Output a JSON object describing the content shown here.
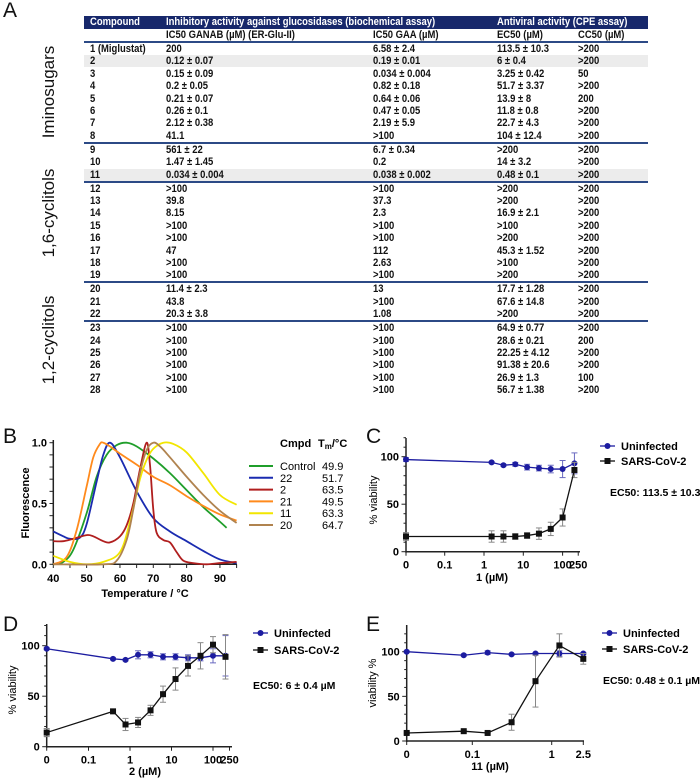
{
  "panel_letters": {
    "a": "A",
    "b": "B",
    "c": "C",
    "d": "D",
    "e": "E"
  },
  "table": {
    "header": {
      "compound": "Compound",
      "inhibitory": "Inhibitory activity against glucosidases (biochemical assay)",
      "antiviral": "Antiviral activity (CPE assay)"
    },
    "subheader": {
      "ganab": "IC50 GANAB (µM) (ER-Glu-II)",
      "gaa": "IC50 GAA (µM)",
      "ec50": "EC50 (µM)",
      "cc50": "CC50 (µM)"
    },
    "groups": [
      {
        "label": "Iminosugars",
        "from": 1,
        "to": 8
      },
      {
        "label": "1,6-cyclitols",
        "from": 9,
        "to": 19
      },
      {
        "label": "1,2-cyclitols",
        "from": 20,
        "to": 28
      }
    ],
    "separators_after": [
      8,
      11,
      19,
      22
    ],
    "shaded_rows": [
      2,
      11
    ],
    "rows": [
      {
        "compound": "1 (Miglustat)",
        "ganab": "200",
        "gaa": "6.58 ± 2.4",
        "ec50": "113.5 ± 10.3",
        "cc50": ">200"
      },
      {
        "compound": "2",
        "ganab": "0.12 ± 0.07",
        "gaa": "0.19 ± 0.01",
        "ec50": "6 ± 0.4",
        "cc50": ">200"
      },
      {
        "compound": "3",
        "ganab": "0.15 ± 0.09",
        "gaa": "0.034 ± 0.004",
        "ec50": "3.25 ± 0.42",
        "cc50": "50"
      },
      {
        "compound": "4",
        "ganab": "0.2 ± 0.05",
        "gaa": "0.82 ± 0.18",
        "ec50": "51.7 ± 3.37",
        "cc50": ">200"
      },
      {
        "compound": "5",
        "ganab": "0.21 ± 0.07",
        "gaa": "0.64 ± 0.06",
        "ec50": "13.9 ± 8",
        "cc50": "200"
      },
      {
        "compound": "6",
        "ganab": "0.26 ± 0.1",
        "gaa": "0.47 ± 0.05",
        "ec50": "11.8 ± 0.8",
        "cc50": ">200"
      },
      {
        "compound": "7",
        "ganab": "2.12 ± 0.38",
        "gaa": "2.19 ± 5.9",
        "ec50": "22.7 ±  4.3",
        "cc50": ">200"
      },
      {
        "compound": "8",
        "ganab": "41.1",
        "gaa": ">100",
        "ec50": "104 ±  12.4",
        "cc50": ">200"
      },
      {
        "compound": "9",
        "ganab": "561 ± 22",
        "gaa": "6.7 ± 0.34",
        "ec50": ">200",
        "cc50": ">200"
      },
      {
        "compound": "10",
        "ganab": "1.47 ± 1.45",
        "gaa": "0.2",
        "ec50": "14 ±  3.2",
        "cc50": ">200"
      },
      {
        "compound": "11",
        "ganab": "0.034 ± 0.004",
        "gaa": "0.038 ± 0.002",
        "ec50": "0.48 ±  0.1",
        "cc50": ">200"
      },
      {
        "compound": "12",
        "ganab": ">100",
        "gaa": ">100",
        "ec50": ">200",
        "cc50": ">200"
      },
      {
        "compound": "13",
        "ganab": "39.8",
        "gaa": "37.3",
        "ec50": ">200",
        "cc50": ">200"
      },
      {
        "compound": "14",
        "ganab": "8.15",
        "gaa": "2.3",
        "ec50": "16.9 ±  2.1",
        "cc50": ">200"
      },
      {
        "compound": "15",
        "ganab": ">100",
        "gaa": ">100",
        "ec50": ">100",
        "cc50": ">200"
      },
      {
        "compound": "16",
        "ganab": ">100",
        "gaa": ">100",
        "ec50": ">200",
        "cc50": ">200"
      },
      {
        "compound": "17",
        "ganab": "47",
        "gaa": "112",
        "ec50": "45.3 ±  1.52",
        "cc50": ">200"
      },
      {
        "compound": "18",
        "ganab": ">100",
        "gaa": "2.63",
        "ec50": ">100",
        "cc50": ">200"
      },
      {
        "compound": "19",
        "ganab": ">100",
        "gaa": ">100",
        "ec50": ">200",
        "cc50": ">200"
      },
      {
        "compound": "20",
        "ganab": "11.4 ± 2.3",
        "gaa": "13",
        "ec50": "17.7 ± 1.28",
        "cc50": ">200"
      },
      {
        "compound": "21",
        "ganab": "43.8",
        "gaa": ">100",
        "ec50": "67.6 ±  14.8",
        "cc50": ">200"
      },
      {
        "compound": "22",
        "ganab": "20.3 ± 3.8",
        "gaa": "1.08",
        "ec50": ">200",
        "cc50": ">200"
      },
      {
        "compound": "23",
        "ganab": ">100",
        "gaa": ">100",
        "ec50": "64.9 ±  0.77",
        "cc50": ">200"
      },
      {
        "compound": "24",
        "ganab": ">100",
        "gaa": ">100",
        "ec50": "28.6 ± 0.21",
        "cc50": "200"
      },
      {
        "compound": "25",
        "ganab": ">100",
        "gaa": ">100",
        "ec50": "22.25 ± 4.12",
        "cc50": ">200"
      },
      {
        "compound": "26",
        "ganab": ">100",
        "gaa": ">100",
        "ec50": "91.38 ± 20.6",
        "cc50": ">200"
      },
      {
        "compound": "27",
        "ganab": ">100",
        "gaa": ">100",
        "ec50": "26.9 ±  1.3",
        "cc50": "100"
      },
      {
        "compound": "28",
        "ganab": ">100",
        "gaa": ">100",
        "ec50": "56.7 ±  1.38",
        "cc50": ">200"
      }
    ]
  },
  "chart_data": [
    {
      "panel": "B",
      "type": "line",
      "xlabel": "Temperature / °C",
      "ylabel": "Fluorescence",
      "xlim": [
        40,
        95
      ],
      "ylim": [
        0,
        1.0
      ],
      "xticks": [
        "40",
        "50",
        "60",
        "70",
        "80",
        "90"
      ],
      "yticks": [
        "0.0",
        "0.5",
        "1.0"
      ],
      "legend": {
        "header_cmpd": "Cmpd",
        "header_tm_main": "T",
        "header_tm_sub": "m",
        "header_tm_unit": "/°C",
        "placement": "right"
      },
      "series": [
        {
          "name": "Control",
          "tm": "49.9",
          "color": "#1f9e2a",
          "points": [
            [
              40,
              0.0
            ],
            [
              43,
              0.02
            ],
            [
              46,
              0.12
            ],
            [
              50,
              0.42
            ],
            [
              53,
              0.72
            ],
            [
              56,
              0.9
            ],
            [
              59,
              0.98
            ],
            [
              62,
              1.0
            ],
            [
              65,
              0.97
            ],
            [
              70,
              0.87
            ],
            [
              75,
              0.75
            ],
            [
              80,
              0.61
            ],
            [
              85,
              0.47
            ],
            [
              90,
              0.35
            ],
            [
              92,
              0.3
            ]
          ]
        },
        {
          "name": "22",
          "tm": "51.7",
          "color": "#1a2bb0",
          "points": [
            [
              40,
              0.27
            ],
            [
              43,
              0.23
            ],
            [
              45,
              0.21
            ],
            [
              48,
              0.22
            ],
            [
              50,
              0.33
            ],
            [
              53,
              0.68
            ],
            [
              55,
              0.9
            ],
            [
              57,
              1.0
            ],
            [
              60,
              0.88
            ],
            [
              65,
              0.6
            ],
            [
              70,
              0.38
            ],
            [
              75,
              0.27
            ],
            [
              80,
              0.19
            ],
            [
              85,
              0.11
            ],
            [
              90,
              0.04
            ],
            [
              95,
              0.01
            ]
          ]
        },
        {
          "name": "2",
          "tm": "63.5",
          "color": "#b01e1e",
          "points": [
            [
              40,
              0.19
            ],
            [
              43,
              0.19
            ],
            [
              46,
              0.21
            ],
            [
              50,
              0.24
            ],
            [
              52,
              0.23
            ],
            [
              55,
              0.19
            ],
            [
              57,
              0.18
            ],
            [
              60,
              0.23
            ],
            [
              62,
              0.32
            ],
            [
              64,
              0.5
            ],
            [
              66,
              0.78
            ],
            [
              68,
              1.0
            ],
            [
              69,
              0.82
            ],
            [
              70,
              0.45
            ],
            [
              71,
              0.26
            ],
            [
              73,
              0.2
            ],
            [
              75,
              0.18
            ],
            [
              77,
              0.1
            ],
            [
              79,
              0.03
            ],
            [
              82,
              0.01
            ],
            [
              86,
              0.0
            ],
            [
              90,
              0.01
            ],
            [
              95,
              0.02
            ]
          ]
        },
        {
          "name": "21",
          "tm": "49.5",
          "color": "#ff8a1c",
          "points": [
            [
              40,
              0.0
            ],
            [
              44,
              0.06
            ],
            [
              47,
              0.28
            ],
            [
              50,
              0.64
            ],
            [
              52,
              0.88
            ],
            [
              54,
              0.99
            ],
            [
              55,
              1.0
            ],
            [
              57,
              0.97
            ],
            [
              60,
              0.91
            ],
            [
              65,
              0.82
            ],
            [
              70,
              0.72
            ],
            [
              75,
              0.65
            ],
            [
              80,
              0.56
            ],
            [
              85,
              0.48
            ],
            [
              90,
              0.41
            ],
            [
              95,
              0.36
            ]
          ]
        },
        {
          "name": "11",
          "tm": "63.3",
          "color": "#f2e600",
          "points": [
            [
              40,
              0.07
            ],
            [
              45,
              0.02
            ],
            [
              50,
              0.0
            ],
            [
              55,
              0.02
            ],
            [
              60,
              0.1
            ],
            [
              63,
              0.35
            ],
            [
              66,
              0.7
            ],
            [
              68,
              0.86
            ],
            [
              70,
              0.95
            ],
            [
              73,
              1.0
            ],
            [
              76,
              0.99
            ],
            [
              80,
              0.92
            ],
            [
              85,
              0.75
            ],
            [
              90,
              0.57
            ],
            [
              95,
              0.49
            ]
          ]
        },
        {
          "name": "20",
          "tm": "64.7",
          "color": "#b0834f",
          "points": [
            [
              40,
              0.0
            ],
            [
              55,
              0.0
            ],
            [
              59,
              0.03
            ],
            [
              62,
              0.2
            ],
            [
              64,
              0.45
            ],
            [
              66,
              0.75
            ],
            [
              68,
              0.94
            ],
            [
              70,
              1.0
            ],
            [
              72,
              0.97
            ],
            [
              75,
              0.88
            ],
            [
              80,
              0.72
            ],
            [
              85,
              0.57
            ],
            [
              90,
              0.44
            ],
            [
              95,
              0.34
            ]
          ]
        }
      ]
    },
    {
      "panel": "C",
      "type": "line",
      "xlabel": "1 (µM)",
      "ylabel": "% viability",
      "xscale": "log",
      "xticks": [
        "0",
        "0.1",
        "1",
        "10",
        "100",
        "250"
      ],
      "yticks": [
        "0",
        "50",
        "100"
      ],
      "ylim": [
        0,
        120
      ],
      "annotation": "EC50: 113.5 ± 10.3 µM",
      "legend_placement": "right",
      "series": [
        {
          "name": "Uninfected",
          "color": "#1c1ca0",
          "marker": "circle",
          "x": [
            0,
            1.5625,
            3.125,
            6.25,
            12.5,
            25,
            50,
            100,
            200
          ],
          "y": [
            97,
            94,
            91,
            92,
            89,
            88,
            87,
            87,
            93
          ],
          "err": [
            2,
            1,
            1,
            2,
            3,
            3,
            4,
            9,
            11
          ]
        },
        {
          "name": "SARS-CoV-2",
          "color": "#111111",
          "marker": "square",
          "x": [
            0,
            1.5625,
            3.125,
            6.25,
            12.5,
            25,
            50,
            100,
            200
          ],
          "y": [
            16,
            16,
            16,
            16,
            17,
            19,
            24,
            36,
            86
          ],
          "err": [
            4,
            6,
            6,
            3,
            3,
            6,
            7,
            9,
            8
          ]
        }
      ]
    },
    {
      "panel": "D",
      "type": "line",
      "xlabel": "2 (µM)",
      "ylabel": "% viability",
      "xscale": "log",
      "xticks": [
        "0",
        "0.1",
        "1",
        "10",
        "100",
        "250"
      ],
      "yticks": [
        "0",
        "50",
        "100"
      ],
      "ylim": [
        0,
        120
      ],
      "annotation": "EC50: 6 ± 0.4 µM",
      "legend_placement": "right",
      "series": [
        {
          "name": "Uninfected",
          "color": "#1c1ca0",
          "marker": "circle",
          "x": [
            0,
            0.39,
            0.78,
            1.5625,
            3.125,
            6.25,
            12.5,
            25,
            50,
            100,
            200
          ],
          "y": [
            97,
            87,
            86,
            91,
            91,
            89,
            89,
            88,
            88,
            90,
            90
          ],
          "err": [
            1,
            1,
            1,
            4,
            3,
            3,
            3,
            3,
            3,
            7,
            20
          ]
        },
        {
          "name": "SARS-CoV-2",
          "color": "#111111",
          "marker": "square",
          "x": [
            0,
            0.39,
            0.78,
            1.5625,
            3.125,
            6.25,
            12.5,
            25,
            50,
            100,
            200
          ],
          "y": [
            14,
            35,
            22,
            24,
            36,
            52,
            67,
            80,
            90,
            101,
            89
          ],
          "err": [
            4,
            1,
            6,
            5,
            5,
            8,
            11,
            10,
            13,
            8,
            22
          ]
        }
      ]
    },
    {
      "panel": "E",
      "type": "line",
      "xlabel": "11 (µM)",
      "ylabel": "viability %",
      "xscale": "log",
      "xticks": [
        "0",
        "0.1",
        "1",
        "2.5"
      ],
      "yticks": [
        "0",
        "50",
        "100"
      ],
      "ylim": [
        0,
        120
      ],
      "annotation": "EC50: 0.48 ± 0.1 µM",
      "legend_placement": "right",
      "series": [
        {
          "name": "Uninfected",
          "color": "#1c1ca0",
          "marker": "circle",
          "x": [
            0,
            0.078,
            0.156,
            0.3125,
            0.625,
            1.25,
            2.5
          ],
          "y": [
            100,
            96,
            99,
            97,
            98,
            98,
            98
          ],
          "err": [
            1,
            1,
            2,
            1,
            1,
            3,
            1
          ]
        },
        {
          "name": "SARS-CoV-2",
          "color": "#111111",
          "marker": "square",
          "x": [
            0,
            0.078,
            0.156,
            0.3125,
            0.625,
            1.25,
            2.5
          ],
          "y": [
            9,
            11,
            9,
            21,
            67,
            107,
            92
          ],
          "err": [
            1,
            1,
            1,
            9,
            29,
            13,
            6
          ]
        }
      ]
    }
  ]
}
